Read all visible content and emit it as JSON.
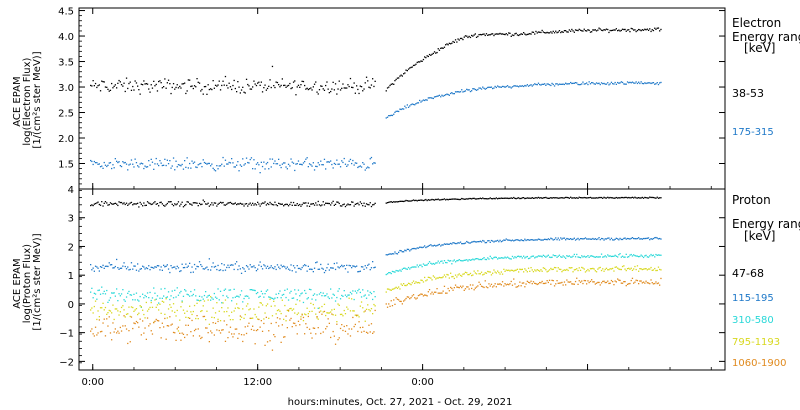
{
  "chart_data": [
    {
      "type": "scatter",
      "panel": "electron",
      "ylabel_lines": [
        "ACE EPAM",
        "log(Electron Flux)",
        "[1/(cm²s ster MeV)]"
      ],
      "ylim": [
        1.0,
        4.55
      ],
      "yticks": [
        1.5,
        2.0,
        2.5,
        3.0,
        3.5,
        4.0,
        4.5
      ],
      "ytick_labels": [
        "1.5",
        "2.0",
        "2.5",
        "3.0",
        "3.5",
        "4.0",
        "4.5"
      ],
      "legend_title_lines": [
        "Electron",
        "Energy range",
        "[keV]"
      ],
      "series": [
        {
          "name": "38-53",
          "color": "#000000",
          "pre_level": 3.03,
          "pre_noise": 0.07,
          "post_start": 2.95,
          "post_end": 4.15,
          "bump": 0.12
        },
        {
          "name": "175-315",
          "color": "#1e78c8",
          "pre_level": 1.5,
          "pre_noise": 0.06,
          "post_start": 2.4,
          "post_end": 3.1,
          "bump": 0.0
        }
      ]
    },
    {
      "type": "scatter",
      "panel": "proton",
      "ylabel_lines": [
        "ACE EPAM",
        "log(Proton Flux)",
        "[1/(cm²s ster MeV)]"
      ],
      "ylim": [
        -2.3,
        4.0
      ],
      "yticks": [
        -2,
        -1,
        0,
        1,
        2,
        3,
        4
      ],
      "ytick_labels": [
        "−2",
        "−1",
        "0",
        "1",
        "2",
        "3",
        "4"
      ],
      "legend_title_lines": [
        "Proton",
        "Energy range",
        "[keV]"
      ],
      "series": [
        {
          "name": "47-68",
          "color": "#000000",
          "pre_level": 3.5,
          "pre_noise": 0.04,
          "post_start": 3.55,
          "post_end": 3.72,
          "bump": 0.0
        },
        {
          "name": "115-195",
          "color": "#1e78c8",
          "pre_level": 1.3,
          "pre_noise": 0.08,
          "post_start": 1.7,
          "post_end": 2.3,
          "bump": 0.0
        },
        {
          "name": "310-580",
          "color": "#28d8d8",
          "pre_level": 0.35,
          "pre_noise": 0.12,
          "post_start": 1.05,
          "post_end": 1.7,
          "bump": 0.0
        },
        {
          "name": "795-1193",
          "color": "#d8d820",
          "pre_level": -0.2,
          "pre_noise": 0.18,
          "post_start": 0.45,
          "post_end": 1.25,
          "bump": 0.0
        },
        {
          "name": "1060-1900",
          "color": "#e08a1e",
          "pre_level": -0.8,
          "pre_noise": 0.25,
          "post_start": -0.05,
          "post_end": 0.8,
          "bump": 0.0
        }
      ]
    }
  ],
  "x_axis": {
    "xlim": [
      -1.0,
      46.0
    ],
    "ticks": [
      0,
      12,
      24,
      36
    ],
    "tick_labels": [
      "0:00",
      "12:00",
      "0:00",
      ""
    ],
    "xlabel": "hours:minutes, Oct. 27, 2021 - Oct. 29, 2021",
    "data_gap": [
      20.5,
      21.3
    ],
    "data_end": 41.3
  }
}
